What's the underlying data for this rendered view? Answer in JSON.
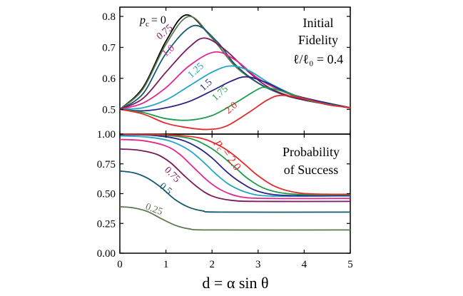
{
  "chart_data": [
    {
      "type": "line",
      "panel": "top",
      "title_lines": [
        "Initial",
        "Fidelity"
      ],
      "ratio_label": "ℓ/ℓ₀ = 0.4",
      "pc_symbol": "p",
      "pc_sub": "c",
      "xlim": [
        0,
        5
      ],
      "ylim": [
        0.42,
        0.83
      ],
      "ytick_values": [
        0.5,
        0.6,
        0.7,
        0.8
      ],
      "ytick_labels": [
        "0.5",
        "0.6",
        "0.7",
        "0.8"
      ],
      "series": [
        {
          "name": "0",
          "label": "= 0",
          "color": "#000000",
          "points": [
            [
              0,
              0.5
            ],
            [
              0.5,
              0.57
            ],
            [
              1.0,
              0.72
            ],
            [
              1.45,
              0.805
            ],
            [
              2.0,
              0.73
            ],
            [
              2.5,
              0.64
            ],
            [
              3.0,
              0.585
            ],
            [
              3.5,
              0.55
            ],
            [
              4.0,
              0.53
            ],
            [
              5.0,
              0.505
            ]
          ]
        },
        {
          "name": "0.25",
          "label": "",
          "color": "#5c7a4e",
          "points": [
            [
              0,
              0.5
            ],
            [
              0.5,
              0.565
            ],
            [
              1.0,
              0.71
            ],
            [
              1.5,
              0.8
            ],
            [
              2.0,
              0.73
            ],
            [
              2.5,
              0.64
            ],
            [
              3.0,
              0.585
            ],
            [
              3.5,
              0.55
            ],
            [
              4.0,
              0.53
            ],
            [
              5.0,
              0.505
            ]
          ]
        },
        {
          "name": "0.5",
          "label": "",
          "color": "#155a70",
          "points": [
            [
              0,
              0.5
            ],
            [
              0.5,
              0.55
            ],
            [
              1.0,
              0.68
            ],
            [
              1.6,
              0.77
            ],
            [
              2.1,
              0.72
            ],
            [
              2.5,
              0.645
            ],
            [
              3.0,
              0.585
            ],
            [
              3.5,
              0.55
            ],
            [
              4.0,
              0.53
            ],
            [
              5.0,
              0.505
            ]
          ]
        },
        {
          "name": "0.75",
          "label": "0.75",
          "color": "#7a1a5e",
          "points": [
            [
              0,
              0.5
            ],
            [
              0.5,
              0.535
            ],
            [
              1.0,
              0.62
            ],
            [
              1.5,
              0.7
            ],
            [
              1.85,
              0.73
            ],
            [
              2.3,
              0.69
            ],
            [
              2.8,
              0.62
            ],
            [
              3.3,
              0.565
            ],
            [
              4.0,
              0.53
            ],
            [
              5.0,
              0.505
            ]
          ]
        },
        {
          "name": "1.0",
          "label": "1.0",
          "color": "#e0298f",
          "points": [
            [
              0,
              0.5
            ],
            [
              0.5,
              0.52
            ],
            [
              1.0,
              0.57
            ],
            [
              1.5,
              0.64
            ],
            [
              2.05,
              0.685
            ],
            [
              2.5,
              0.66
            ],
            [
              3.0,
              0.6
            ],
            [
              3.5,
              0.56
            ],
            [
              4.0,
              0.535
            ],
            [
              5.0,
              0.505
            ]
          ]
        },
        {
          "name": "1.25",
          "label": "1.25",
          "color": "#21a7c4",
          "points": [
            [
              0,
              0.5
            ],
            [
              0.5,
              0.505
            ],
            [
              1.0,
              0.53
            ],
            [
              1.5,
              0.575
            ],
            [
              2.0,
              0.62
            ],
            [
              2.4,
              0.64
            ],
            [
              2.8,
              0.625
            ],
            [
              3.3,
              0.58
            ],
            [
              4.0,
              0.535
            ],
            [
              5.0,
              0.505
            ]
          ]
        },
        {
          "name": "1.5",
          "label": "1.5",
          "color": "#2c2486",
          "points": [
            [
              0,
              0.5
            ],
            [
              0.5,
              0.495
            ],
            [
              1.0,
              0.505
            ],
            [
              1.5,
              0.525
            ],
            [
              2.0,
              0.56
            ],
            [
              2.4,
              0.59
            ],
            [
              2.75,
              0.605
            ],
            [
              3.2,
              0.585
            ],
            [
              3.8,
              0.545
            ],
            [
              5.0,
              0.505
            ]
          ]
        },
        {
          "name": "1.75",
          "label": "1.75",
          "color": "#1e9c4e",
          "points": [
            [
              0,
              0.5
            ],
            [
              0.5,
              0.49
            ],
            [
              1.0,
              0.47
            ],
            [
              1.5,
              0.465
            ],
            [
              2.0,
              0.48
            ],
            [
              2.5,
              0.52
            ],
            [
              3.0,
              0.565
            ],
            [
              3.2,
              0.57
            ],
            [
              3.6,
              0.555
            ],
            [
              4.2,
              0.525
            ],
            [
              5.0,
              0.505
            ]
          ]
        },
        {
          "name": "2.0",
          "label": "2.0",
          "color": "#e22b2b",
          "points": [
            [
              0,
              0.5
            ],
            [
              0.5,
              0.485
            ],
            [
              1.0,
              0.455
            ],
            [
              1.5,
              0.44
            ],
            [
              1.9,
              0.435
            ],
            [
              2.3,
              0.445
            ],
            [
              2.8,
              0.49
            ],
            [
              3.2,
              0.53
            ],
            [
              3.5,
              0.545
            ],
            [
              4.0,
              0.535
            ],
            [
              4.5,
              0.515
            ],
            [
              5.0,
              0.505
            ]
          ]
        }
      ]
    },
    {
      "type": "line",
      "panel": "bottom",
      "title_lines": [
        "Probability",
        "of Success"
      ],
      "pc_symbol": "p",
      "pc_sub": "c",
      "xlim": [
        0,
        5
      ],
      "ylim": [
        0,
        1.0
      ],
      "ytick_values": [
        0,
        0.25,
        0.5,
        0.75,
        1.0
      ],
      "ytick_labels": [
        "0.00",
        "0.25",
        "0.50",
        "0.75",
        "1.00"
      ],
      "xtick_values": [
        0,
        1,
        2,
        3,
        4,
        5
      ],
      "xtick_labels": [
        "0",
        "1",
        "2",
        "3",
        "4",
        "5"
      ],
      "xlabel": "d = α sin θ",
      "series": [
        {
          "name": "0.25",
          "label": "0.25",
          "color": "#5c7a4e",
          "points": [
            [
              0,
              0.39
            ],
            [
              0.3,
              0.38
            ],
            [
              0.6,
              0.35
            ],
            [
              0.9,
              0.29
            ],
            [
              1.2,
              0.235
            ],
            [
              1.5,
              0.205
            ],
            [
              2.0,
              0.195
            ],
            [
              5.0,
              0.195
            ]
          ]
        },
        {
          "name": "0.5",
          "label": "0.5",
          "color": "#155a70",
          "points": [
            [
              0,
              0.69
            ],
            [
              0.3,
              0.675
            ],
            [
              0.6,
              0.63
            ],
            [
              0.9,
              0.55
            ],
            [
              1.2,
              0.45
            ],
            [
              1.5,
              0.385
            ],
            [
              1.8,
              0.355
            ],
            [
              2.2,
              0.345
            ],
            [
              5.0,
              0.345
            ]
          ]
        },
        {
          "name": "0.75",
          "label": "0.75",
          "color": "#7a1a5e",
          "points": [
            [
              0,
              0.875
            ],
            [
              0.4,
              0.865
            ],
            [
              0.8,
              0.83
            ],
            [
              1.1,
              0.76
            ],
            [
              1.4,
              0.65
            ],
            [
              1.7,
              0.55
            ],
            [
              2.0,
              0.48
            ],
            [
              2.4,
              0.445
            ],
            [
              3.0,
              0.435
            ],
            [
              5.0,
              0.435
            ]
          ]
        },
        {
          "name": "1.0",
          "label": "",
          "color": "#e0298f",
          "points": [
            [
              0,
              0.955
            ],
            [
              0.5,
              0.945
            ],
            [
              1.0,
              0.9
            ],
            [
              1.3,
              0.83
            ],
            [
              1.6,
              0.72
            ],
            [
              1.9,
              0.61
            ],
            [
              2.2,
              0.53
            ],
            [
              2.6,
              0.475
            ],
            [
              3.2,
              0.46
            ],
            [
              5.0,
              0.46
            ]
          ]
        },
        {
          "name": "1.25",
          "label": "",
          "color": "#21a7c4",
          "points": [
            [
              0,
              0.985
            ],
            [
              0.6,
              0.975
            ],
            [
              1.1,
              0.94
            ],
            [
              1.5,
              0.865
            ],
            [
              1.8,
              0.77
            ],
            [
              2.1,
              0.66
            ],
            [
              2.4,
              0.57
            ],
            [
              2.8,
              0.505
            ],
            [
              3.3,
              0.48
            ],
            [
              5.0,
              0.48
            ]
          ]
        },
        {
          "name": "1.5",
          "label": "",
          "color": "#2c2486",
          "points": [
            [
              0,
              0.995
            ],
            [
              0.7,
              0.99
            ],
            [
              1.3,
              0.955
            ],
            [
              1.7,
              0.885
            ],
            [
              2.0,
              0.8
            ],
            [
              2.3,
              0.69
            ],
            [
              2.6,
              0.6
            ],
            [
              3.0,
              0.52
            ],
            [
              3.6,
              0.485
            ],
            [
              5.0,
              0.485
            ]
          ]
        },
        {
          "name": "1.75",
          "label": "",
          "color": "#1e9c4e",
          "points": [
            [
              0,
              1.0
            ],
            [
              0.8,
              0.995
            ],
            [
              1.5,
              0.965
            ],
            [
              1.9,
              0.9
            ],
            [
              2.2,
              0.82
            ],
            [
              2.5,
              0.72
            ],
            [
              2.8,
              0.62
            ],
            [
              3.2,
              0.535
            ],
            [
              3.8,
              0.495
            ],
            [
              5.0,
              0.49
            ]
          ]
        },
        {
          "name": "2.0",
          "label": "= 2.0",
          "color": "#e22b2b",
          "points": [
            [
              0,
              1.0
            ],
            [
              1.0,
              0.995
            ],
            [
              1.7,
              0.97
            ],
            [
              2.1,
              0.915
            ],
            [
              2.4,
              0.845
            ],
            [
              2.7,
              0.75
            ],
            [
              3.0,
              0.65
            ],
            [
              3.4,
              0.555
            ],
            [
              3.9,
              0.505
            ],
            [
              4.5,
              0.495
            ],
            [
              5.0,
              0.495
            ]
          ]
        }
      ]
    }
  ]
}
